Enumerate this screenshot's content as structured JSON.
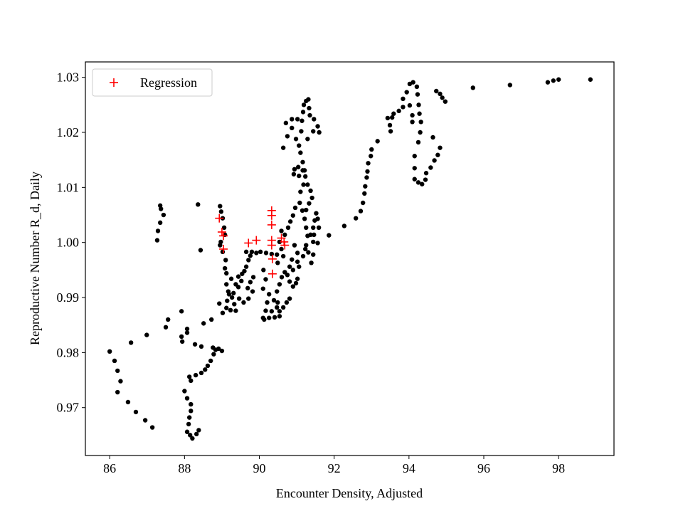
{
  "chart_data": {
    "type": "scatter",
    "xlabel": "Encounter Density, Adjusted",
    "ylabel": "Reproductive Number R_d, Daily",
    "xlim": [
      85.35,
      99.48
    ],
    "ylim": [
      0.9613,
      1.0328
    ],
    "xticks": [
      86,
      88,
      90,
      92,
      94,
      96,
      98
    ],
    "yticks": [
      0.97,
      0.98,
      0.99,
      {
        "value": 1.0,
        "label": "1.00"
      },
      1.01,
      1.02,
      1.03
    ],
    "grid": false,
    "legend": "upper left",
    "series": [
      {
        "color": "#000000",
        "marker": "o",
        "x": [
          86.0,
          86.13,
          86.21,
          86.29,
          86.21,
          86.49,
          86.7,
          86.95,
          87.14,
          86.57,
          86.99,
          87.5,
          87.56,
          87.92,
          87.92,
          87.94,
          88.07,
          88.07,
          88.0,
          88.07,
          88.17,
          88.17,
          88.13,
          88.11,
          88.07,
          88.15,
          88.21,
          88.32,
          88.38,
          88.13,
          88.17,
          88.3,
          88.45,
          88.55,
          88.62,
          88.7,
          88.78,
          88.83,
          88.91,
          89.0,
          88.76,
          88.28,
          88.45,
          88.51,
          88.72,
          88.93,
          89.02,
          89.12,
          89.14,
          89.19,
          89.31,
          89.37,
          89.44,
          89.54,
          89.6,
          89.65,
          89.71,
          89.76,
          89.65,
          89.8,
          89.92,
          90.03,
          90.18,
          90.33,
          90.47,
          88.95,
          88.98,
          89.02,
          89.06,
          89.08,
          88.97,
          88.95,
          89.02,
          89.1,
          89.08,
          89.12,
          89.25,
          89.12,
          89.17,
          89.27,
          89.33,
          89.23,
          89.37,
          89.44,
          89.52,
          89.69,
          89.82,
          89.76,
          89.84,
          89.71,
          89.58,
          89.46,
          87.35,
          87.37,
          87.44,
          87.35,
          87.29,
          87.27,
          88.36,
          88.43,
          90.11,
          90.17,
          90.1,
          90.26,
          90.21,
          90.17,
          90.1,
          90.13,
          90.26,
          90.41,
          90.54,
          90.33,
          90.47,
          90.39,
          90.47,
          90.54,
          90.6,
          90.68,
          90.75,
          90.81,
          90.9,
          90.98,
          91.02,
          90.81,
          90.73,
          90.64,
          90.54,
          90.49,
          90.49,
          90.64,
          90.59,
          90.54,
          90.59,
          90.68,
          90.77,
          90.83,
          90.9,
          90.96,
          91.08,
          91.15,
          91.21,
          91.25,
          91.29,
          91.25,
          91.31,
          91.39,
          91.44,
          91.37,
          91.44,
          91.48,
          91.52,
          91.56,
          91.59,
          91.44,
          91.56,
          91.46,
          91.86,
          90.94,
          91.02,
          90.87,
          90.81,
          90.9,
          91.06,
          91.02,
          91.17,
          91.23,
          91.1,
          91.18,
          91.23,
          91.16,
          91.04,
          90.94,
          90.92,
          91.06,
          91.16,
          91.1,
          91.06,
          90.98,
          90.87,
          90.75,
          90.64,
          90.71,
          90.87,
          91.02,
          91.14,
          91.12,
          91.17,
          91.19,
          91.25,
          91.31,
          91.33,
          91.35,
          91.46,
          91.56,
          91.6,
          91.44,
          91.29,
          91.21,
          91.29,
          91.37,
          91.41,
          91.33,
          91.25,
          92.27,
          92.58,
          92.71,
          92.77,
          92.81,
          92.83,
          92.87,
          92.89,
          92.91,
          92.98,
          93.0,
          93.16,
          93.43,
          93.49,
          93.51,
          93.55,
          93.59,
          93.73,
          93.84,
          93.84,
          93.94,
          94.02,
          94.11,
          94.21,
          94.23,
          94.26,
          94.28,
          94.32,
          94.3,
          94.25,
          94.15,
          94.15,
          94.15,
          94.25,
          94.35,
          94.44,
          94.46,
          94.58,
          94.68,
          94.77,
          94.83,
          94.64,
          94.09,
          94.09,
          94.02,
          94.73,
          94.83,
          94.89,
          94.97,
          95.71,
          96.7,
          97.71,
          97.86,
          98.0,
          98.85
        ],
        "values": [
          0.9802,
          0.9785,
          0.9767,
          0.9748,
          0.9728,
          0.971,
          0.9692,
          0.9677,
          0.9664,
          0.9818,
          0.9832,
          0.9846,
          0.986,
          0.9875,
          0.9829,
          0.982,
          0.9843,
          0.9836,
          0.973,
          0.9717,
          0.9706,
          0.9694,
          0.9682,
          0.967,
          0.9656,
          0.965,
          0.9644,
          0.9652,
          0.9659,
          0.9756,
          0.9749,
          0.9759,
          0.9763,
          0.9769,
          0.9776,
          0.9785,
          0.9797,
          0.9805,
          0.9807,
          0.9803,
          0.9809,
          0.9815,
          0.9811,
          0.9853,
          0.986,
          0.9889,
          0.9872,
          0.9881,
          0.9894,
          0.9906,
          0.9908,
          0.9924,
          0.9938,
          0.9943,
          0.9948,
          0.9956,
          0.9968,
          0.9976,
          0.9983,
          0.9983,
          0.9981,
          0.9983,
          0.9981,
          0.9979,
          0.9978,
          1.0066,
          1.0056,
          1.0044,
          1.0027,
          1.0014,
          1.0001,
          0.9995,
          0.9983,
          0.9968,
          0.9953,
          0.9944,
          0.9934,
          0.9924,
          0.9911,
          0.99,
          0.9888,
          0.9877,
          0.9876,
          0.9919,
          0.993,
          0.9917,
          0.9911,
          0.9928,
          0.9937,
          0.9898,
          0.9891,
          0.9898,
          1.0067,
          1.0061,
          1.005,
          1.0036,
          1.0021,
          1.0004,
          1.0069,
          0.9986,
          0.995,
          0.9933,
          0.9916,
          0.9906,
          0.9891,
          0.9876,
          0.9863,
          0.986,
          0.9863,
          0.9864,
          0.9866,
          0.9875,
          0.9882,
          0.9895,
          0.9911,
          0.9924,
          0.9937,
          0.9946,
          0.9941,
          0.9929,
          0.992,
          0.9926,
          0.9934,
          0.9898,
          0.9891,
          0.9882,
          0.9875,
          0.9891,
          0.9963,
          0.9975,
          0.9988,
          1.0001,
          1.0021,
          1.0014,
          1.0027,
          1.0038,
          1.0049,
          1.0063,
          1.0072,
          1.0058,
          1.0043,
          1.0027,
          1.0012,
          0.9995,
          0.9982,
          0.9963,
          0.9978,
          1.0014,
          1.0027,
          1.004,
          1.0053,
          1.0043,
          1.0027,
          1.0001,
          0.9999,
          1.0014,
          1.0013,
          0.9995,
          0.9981,
          0.9969,
          0.9956,
          0.995,
          0.9956,
          0.9965,
          0.9975,
          0.9988,
          1.0092,
          1.0105,
          1.012,
          1.0131,
          1.0137,
          1.0133,
          1.0124,
          1.0121,
          1.0146,
          1.0163,
          1.0176,
          1.0188,
          1.0208,
          1.0193,
          1.0172,
          1.0217,
          1.0224,
          1.0224,
          1.0221,
          1.0202,
          1.0237,
          1.025,
          1.0257,
          1.026,
          1.0244,
          1.0231,
          1.0224,
          1.0211,
          1.02,
          1.0202,
          1.0188,
          1.0131,
          1.0105,
          1.0094,
          1.0081,
          1.0071,
          1.0059,
          1.003,
          1.0044,
          1.0057,
          1.0072,
          1.0089,
          1.0102,
          1.0118,
          1.0129,
          1.0144,
          1.0157,
          1.0169,
          1.0184,
          1.0226,
          1.0213,
          1.0202,
          1.0227,
          1.0234,
          1.0239,
          1.0246,
          1.0261,
          1.0273,
          1.0288,
          1.0291,
          1.0283,
          1.0269,
          1.025,
          1.0234,
          1.0219,
          1.02,
          1.0182,
          1.0157,
          1.0135,
          1.0115,
          1.0109,
          1.0106,
          1.0114,
          1.0126,
          1.0136,
          1.0149,
          1.0159,
          1.0172,
          1.0191,
          1.0219,
          1.0231,
          1.0249,
          1.0275,
          1.027,
          1.0263,
          1.0256,
          1.0281,
          1.0286,
          1.0291,
          1.0294,
          1.0296,
          1.0296
        ]
      },
      {
        "name": "Regression",
        "color": "#ff0000",
        "marker": "+",
        "x": [
          88.93,
          89.0,
          89.04,
          89.04,
          89.71,
          89.92,
          90.33,
          90.33,
          90.33,
          90.33,
          90.33,
          90.35,
          90.59,
          90.66,
          90.68,
          90.35
        ],
        "values": [
          1.0044,
          1.0019,
          1.0012,
          0.9988,
          0.9999,
          1.0004,
          1.0058,
          1.0049,
          1.0032,
          1.0004,
          0.9995,
          0.9943,
          1.0008,
          1.0001,
          0.9995,
          0.997
        ]
      }
    ]
  }
}
